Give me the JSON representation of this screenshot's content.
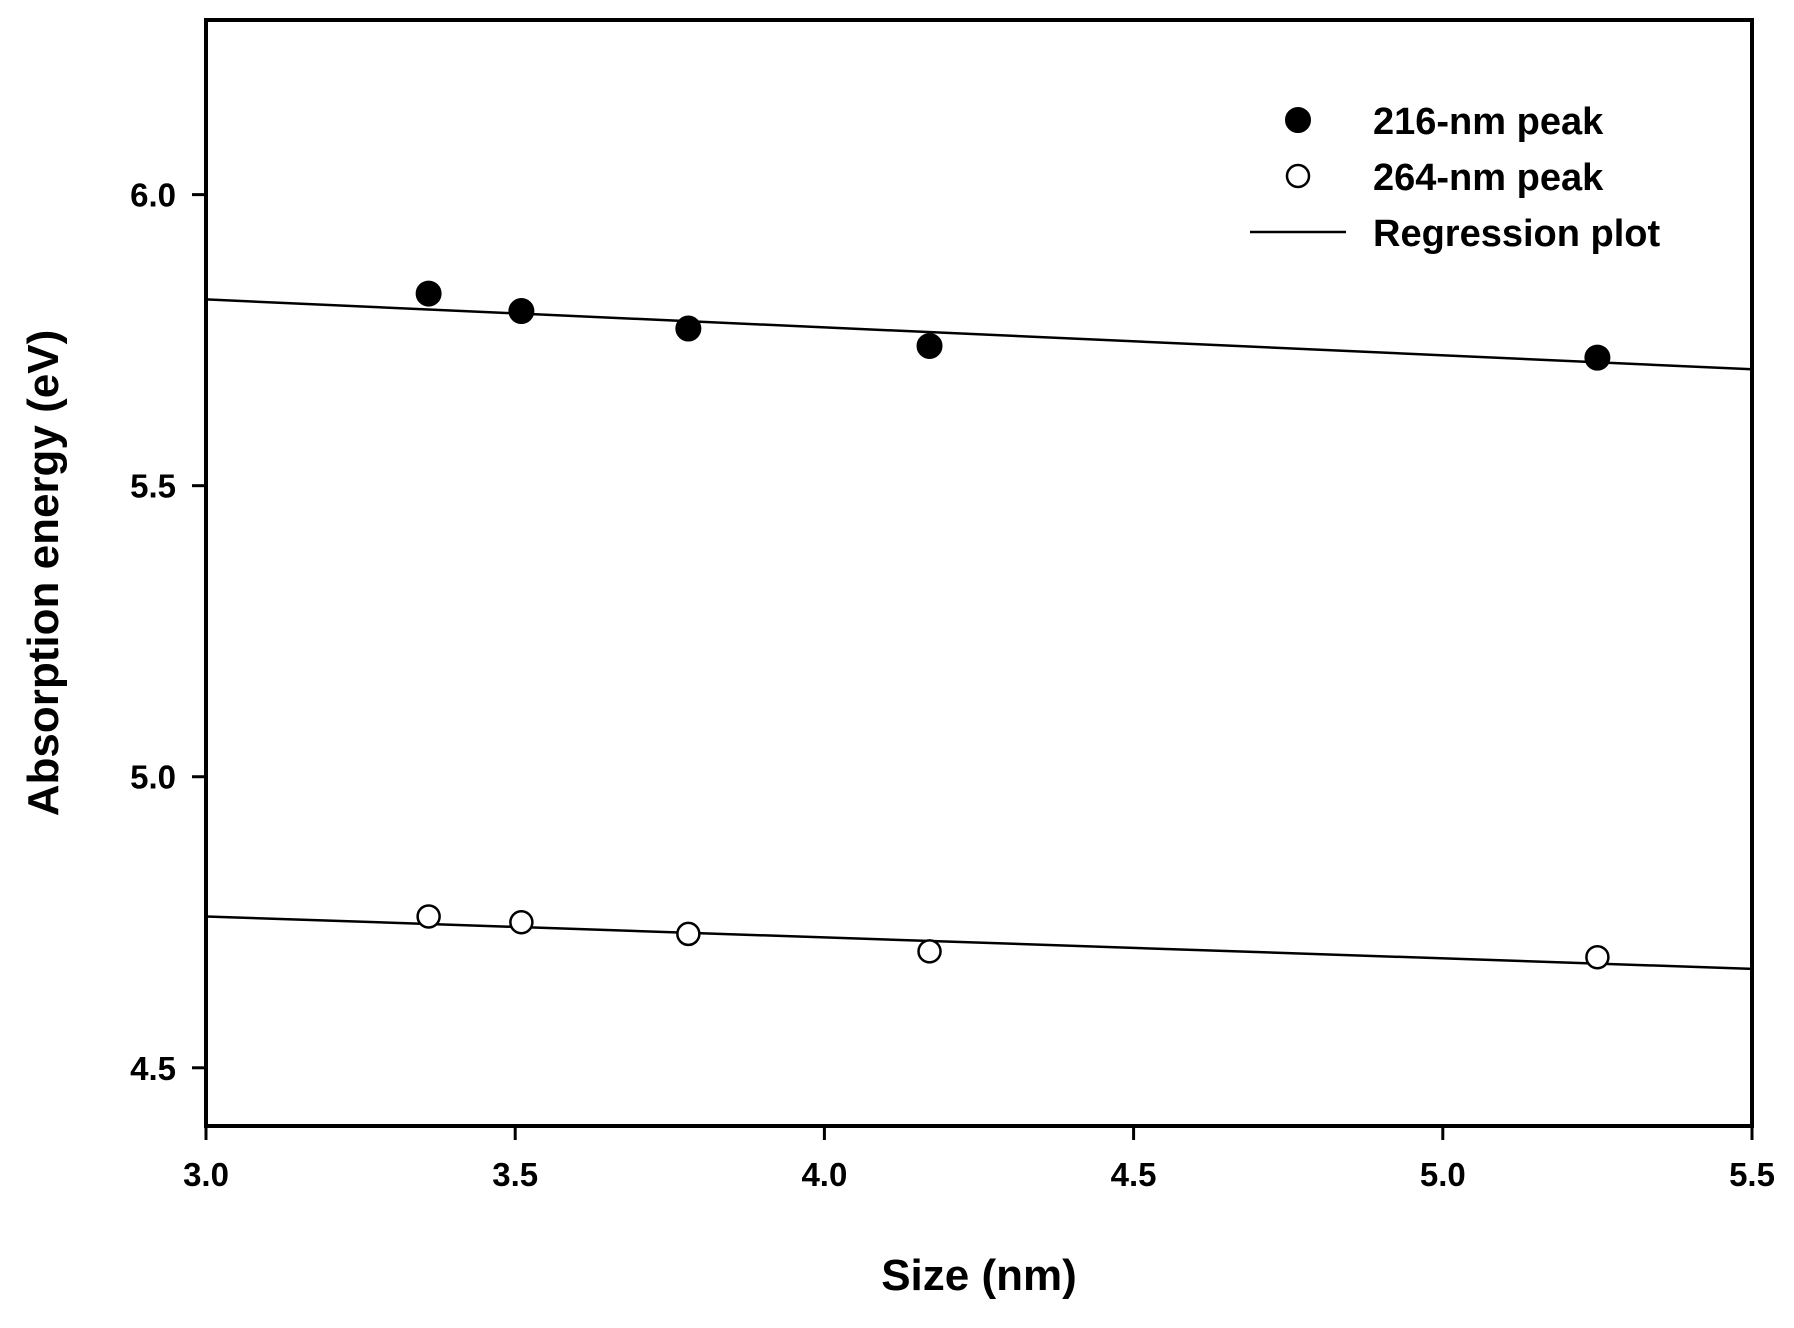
{
  "chart_data": {
    "type": "scatter",
    "title": "",
    "xlabel": "Size (nm)",
    "ylabel": "Absorption energy (eV)",
    "xlim": [
      3.0,
      5.5
    ],
    "ylim": [
      4.4,
      6.3
    ],
    "xticks": [
      3.0,
      3.5,
      4.0,
      4.5,
      5.0,
      5.5
    ],
    "xtick_labels": [
      "3.0",
      "3.5",
      "4.0",
      "4.5",
      "5.0",
      "5.5"
    ],
    "yticks": [
      4.5,
      5.0,
      5.5,
      6.0
    ],
    "ytick_labels": [
      "4.5",
      "5.0",
      "5.5",
      "6.0"
    ],
    "grid": false,
    "legend_position": "top-right",
    "series": [
      {
        "name": "216-nm peak",
        "marker": "filled-circle",
        "x": [
          3.36,
          3.51,
          3.78,
          4.17,
          5.25
        ],
        "y": [
          5.83,
          5.8,
          5.77,
          5.74,
          5.72
        ]
      },
      {
        "name": "264-nm peak",
        "marker": "open-circle",
        "x": [
          3.36,
          3.51,
          3.78,
          4.17,
          5.25
        ],
        "y": [
          4.76,
          4.75,
          4.73,
          4.7,
          4.69
        ]
      }
    ],
    "regression": {
      "name": "Regression plot",
      "lines": [
        {
          "x": [
            3.0,
            5.5
          ],
          "y": [
            5.82,
            5.7
          ]
        },
        {
          "x": [
            3.0,
            5.5
          ],
          "y": [
            4.76,
            4.67
          ]
        }
      ]
    },
    "colors": {
      "marker": "#000000",
      "open_fill": "#ffffff",
      "line": "#000000",
      "background": "#ffffff"
    }
  }
}
